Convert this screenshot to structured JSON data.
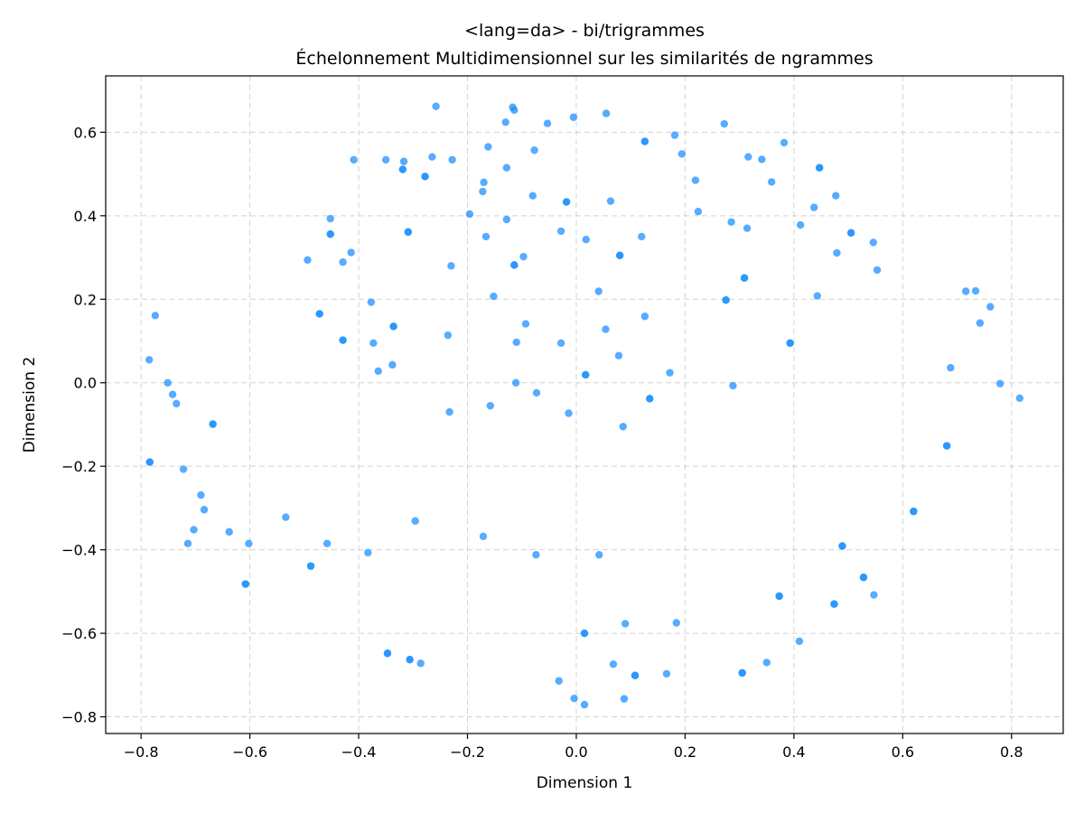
{
  "chart_data": {
    "type": "scatter",
    "title": "<lang=da> - bi/trigrammes",
    "subtitle": "Échelonnement Multidimensionnel sur les similarités de ngrammes",
    "xlabel": "Dimension 1",
    "ylabel": "Dimension 2",
    "xlim": [
      -0.865,
      0.895
    ],
    "ylim": [
      -0.84,
      0.735
    ],
    "xticks": [
      -0.8,
      -0.6,
      -0.4,
      -0.2,
      0.0,
      0.2,
      0.4,
      0.6,
      0.8
    ],
    "yticks": [
      -0.8,
      -0.6,
      -0.4,
      -0.2,
      0.0,
      0.2,
      0.4,
      0.6
    ],
    "xtick_labels": [
      "−0.8",
      "−0.6",
      "−0.4",
      "−0.2",
      "0.0",
      "0.2",
      "0.4",
      "0.6",
      "0.8"
    ],
    "ytick_labels": [
      "−0.8",
      "−0.6",
      "−0.4",
      "−0.2",
      "0.0",
      "0.2",
      "0.4",
      "0.6"
    ],
    "grid": true,
    "marker_color": "#1E90FF",
    "marker_alpha": 0.75,
    "points": [
      [
        -0.258,
        0.662
      ],
      [
        -0.117,
        0.66
      ],
      [
        -0.114,
        0.653
      ],
      [
        -0.13,
        0.624
      ],
      [
        -0.005,
        0.636
      ],
      [
        0.055,
        0.645
      ],
      [
        -0.053,
        0.621
      ],
      [
        0.126,
        0.578
      ],
      [
        0.126,
        0.578
      ],
      [
        0.272,
        0.62
      ],
      [
        0.181,
        0.593
      ],
      [
        0.382,
        0.575
      ],
      [
        -0.162,
        0.565
      ],
      [
        -0.077,
        0.557
      ],
      [
        0.194,
        0.548
      ],
      [
        -0.409,
        0.534
      ],
      [
        -0.35,
        0.534
      ],
      [
        -0.317,
        0.53
      ],
      [
        -0.265,
        0.541
      ],
      [
        -0.228,
        0.534
      ],
      [
        -0.128,
        0.515
      ],
      [
        0.316,
        0.541
      ],
      [
        0.341,
        0.535
      ],
      [
        0.447,
        0.515
      ],
      [
        0.447,
        0.515
      ],
      [
        -0.319,
        0.511
      ],
      [
        -0.319,
        0.511
      ],
      [
        -0.278,
        0.494
      ],
      [
        -0.278,
        0.494
      ],
      [
        -0.17,
        0.48
      ],
      [
        0.219,
        0.485
      ],
      [
        0.359,
        0.481
      ],
      [
        -0.172,
        0.458
      ],
      [
        -0.08,
        0.448
      ],
      [
        0.477,
        0.448
      ],
      [
        -0.018,
        0.433
      ],
      [
        -0.018,
        0.433
      ],
      [
        0.063,
        0.435
      ],
      [
        0.437,
        0.42
      ],
      [
        0.224,
        0.41
      ],
      [
        -0.196,
        0.404
      ],
      [
        -0.128,
        0.391
      ],
      [
        -0.452,
        0.393
      ],
      [
        0.285,
        0.385
      ],
      [
        0.412,
        0.378
      ],
      [
        0.314,
        0.37
      ],
      [
        -0.452,
        0.356
      ],
      [
        -0.452,
        0.356
      ],
      [
        -0.309,
        0.361
      ],
      [
        -0.309,
        0.361
      ],
      [
        -0.028,
        0.363
      ],
      [
        0.12,
        0.35
      ],
      [
        -0.166,
        0.35
      ],
      [
        0.018,
        0.343
      ],
      [
        0.505,
        0.359
      ],
      [
        0.505,
        0.359
      ],
      [
        0.546,
        0.336
      ],
      [
        -0.414,
        0.312
      ],
      [
        0.08,
        0.305
      ],
      [
        0.08,
        0.305
      ],
      [
        0.479,
        0.311
      ],
      [
        -0.494,
        0.294
      ],
      [
        -0.429,
        0.289
      ],
      [
        -0.097,
        0.302
      ],
      [
        -0.114,
        0.282
      ],
      [
        -0.114,
        0.282
      ],
      [
        -0.23,
        0.28
      ],
      [
        0.553,
        0.27
      ],
      [
        0.309,
        0.251
      ],
      [
        0.309,
        0.251
      ],
      [
        0.041,
        0.219
      ],
      [
        -0.152,
        0.207
      ],
      [
        0.443,
        0.208
      ],
      [
        0.716,
        0.219
      ],
      [
        0.734,
        0.22
      ],
      [
        0.275,
        0.198
      ],
      [
        0.275,
        0.198
      ],
      [
        -0.377,
        0.193
      ],
      [
        0.761,
        0.182
      ],
      [
        -0.472,
        0.165
      ],
      [
        -0.472,
        0.165
      ],
      [
        -0.774,
        0.161
      ],
      [
        0.126,
        0.159
      ],
      [
        0.742,
        0.143
      ],
      [
        -0.093,
        0.141
      ],
      [
        -0.336,
        0.135
      ],
      [
        -0.336,
        0.135
      ],
      [
        0.054,
        0.128
      ],
      [
        -0.236,
        0.114
      ],
      [
        -0.429,
        0.102
      ],
      [
        -0.429,
        0.102
      ],
      [
        -0.11,
        0.097
      ],
      [
        -0.373,
        0.095
      ],
      [
        0.393,
        0.095
      ],
      [
        0.393,
        0.095
      ],
      [
        -0.028,
        0.095
      ],
      [
        0.078,
        0.065
      ],
      [
        -0.785,
        0.055
      ],
      [
        -0.338,
        0.043
      ],
      [
        0.688,
        0.036
      ],
      [
        -0.364,
        0.028
      ],
      [
        0.172,
        0.024
      ],
      [
        0.017,
        0.019
      ],
      [
        0.017,
        0.019
      ],
      [
        -0.751,
        0.0
      ],
      [
        -0.111,
        0.0
      ],
      [
        0.779,
        -0.002
      ],
      [
        0.288,
        -0.007
      ],
      [
        -0.742,
        -0.028
      ],
      [
        -0.073,
        -0.024
      ],
      [
        0.135,
        -0.038
      ],
      [
        0.135,
        -0.038
      ],
      [
        0.815,
        -0.037
      ],
      [
        -0.735,
        -0.05
      ],
      [
        -0.158,
        -0.055
      ],
      [
        -0.233,
        -0.07
      ],
      [
        -0.014,
        -0.073
      ],
      [
        -0.668,
        -0.099
      ],
      [
        -0.668,
        -0.099
      ],
      [
        0.086,
        -0.105
      ],
      [
        0.681,
        -0.151
      ],
      [
        0.681,
        -0.151
      ],
      [
        -0.784,
        -0.19
      ],
      [
        -0.784,
        -0.19
      ],
      [
        -0.722,
        -0.207
      ],
      [
        -0.69,
        -0.269
      ],
      [
        -0.684,
        -0.304
      ],
      [
        0.62,
        -0.308
      ],
      [
        0.62,
        -0.308
      ],
      [
        -0.534,
        -0.322
      ],
      [
        -0.296,
        -0.331
      ],
      [
        -0.703,
        -0.352
      ],
      [
        -0.638,
        -0.357
      ],
      [
        -0.171,
        -0.368
      ],
      [
        -0.714,
        -0.385
      ],
      [
        -0.602,
        -0.385
      ],
      [
        -0.458,
        -0.385
      ],
      [
        0.489,
        -0.391
      ],
      [
        0.489,
        -0.391
      ],
      [
        -0.383,
        -0.407
      ],
      [
        -0.074,
        -0.412
      ],
      [
        0.042,
        -0.412
      ],
      [
        -0.488,
        -0.439
      ],
      [
        -0.488,
        -0.439
      ],
      [
        0.528,
        -0.466
      ],
      [
        0.528,
        -0.466
      ],
      [
        -0.608,
        -0.482
      ],
      [
        -0.608,
        -0.482
      ],
      [
        0.373,
        -0.511
      ],
      [
        0.373,
        -0.511
      ],
      [
        0.547,
        -0.508
      ],
      [
        0.474,
        -0.53
      ],
      [
        0.474,
        -0.53
      ],
      [
        0.09,
        -0.577
      ],
      [
        0.184,
        -0.575
      ],
      [
        0.015,
        -0.6
      ],
      [
        0.015,
        -0.6
      ],
      [
        0.41,
        -0.619
      ],
      [
        -0.347,
        -0.648
      ],
      [
        -0.347,
        -0.648
      ],
      [
        -0.306,
        -0.663
      ],
      [
        -0.306,
        -0.663
      ],
      [
        -0.286,
        -0.672
      ],
      [
        0.068,
        -0.674
      ],
      [
        0.35,
        -0.67
      ],
      [
        0.305,
        -0.695
      ],
      [
        0.305,
        -0.695
      ],
      [
        0.108,
        -0.701
      ],
      [
        0.108,
        -0.701
      ],
      [
        0.166,
        -0.697
      ],
      [
        -0.032,
        -0.714
      ],
      [
        -0.004,
        -0.756
      ],
      [
        0.088,
        -0.757
      ],
      [
        0.015,
        -0.771
      ]
    ]
  }
}
